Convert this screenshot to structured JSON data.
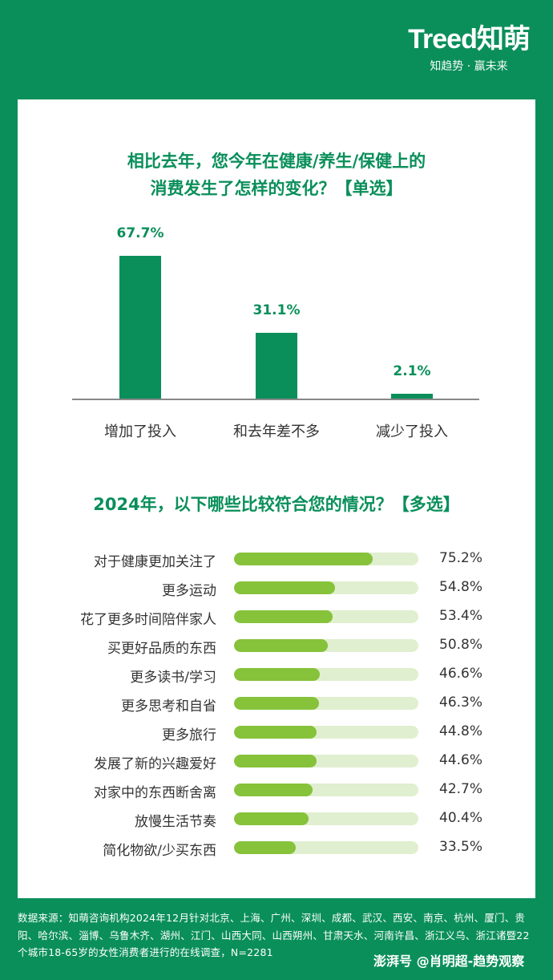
{
  "brand": {
    "logo_text": "Treed知萌",
    "tagline": "知趋势 · 赢未来"
  },
  "colors": {
    "background": "#0a8f5a",
    "bar_primary": "#0a8f5a",
    "hbar_fill": "#86c23a",
    "hbar_track": "#e0efcf"
  },
  "chart_data": [
    {
      "type": "bar",
      "title": "相比去年，您今年在健康/养生/保健上的消费发生了怎样的变化？【单选】",
      "title_lines": [
        "相比去年，您今年在健康/养生/保健上的",
        "消费发生了怎样的变化？【单选】"
      ],
      "categories": [
        "增加了投入",
        "和去年差不多",
        "减少了投入"
      ],
      "values": [
        67.7,
        31.1,
        2.1
      ],
      "labels": [
        "67.7%",
        "31.1%",
        "2.1%"
      ],
      "unit": "%",
      "ylim": [
        0,
        70
      ],
      "grid": false
    },
    {
      "type": "bar",
      "orientation": "horizontal",
      "title": "2024年，以下哪些比较符合您的情况？【多选】",
      "categories": [
        "对于健康更加关注了",
        "更多运动",
        "花了更多时间陪伴家人",
        "买更好品质的东西",
        "更多读书/学习",
        "更多思考和自省",
        "更多旅行",
        "发展了新的兴趣爱好",
        "对家中的东西断舍离",
        "放慢生活节奏",
        "简化物欲/少买东西"
      ],
      "values": [
        75.2,
        54.8,
        53.4,
        50.8,
        46.6,
        46.3,
        44.8,
        44.6,
        42.7,
        40.4,
        33.5
      ],
      "labels": [
        "75.2%",
        "54.8%",
        "53.4%",
        "50.8%",
        "46.6%",
        "46.3%",
        "44.8%",
        "44.6%",
        "42.7%",
        "40.4%",
        "33.5%"
      ],
      "unit": "%",
      "xlim": [
        0,
        100
      ],
      "grid": false
    }
  ],
  "footer": {
    "source_text": "数据来源：知萌咨询机构2024年12月针对北京、上海、广州、深圳、成都、武汉、西安、南京、杭州、厦门、贵阳、哈尔滨、淄博、乌鲁木齐、湖州、江门、山西大同、山西朔州、甘肃天水、河南许昌、浙江义乌、浙江诸暨22个城市18-65岁的女性消费者进行的在线调查，N=2281"
  },
  "watermark": "澎湃号 @肖明超-趋势观察"
}
